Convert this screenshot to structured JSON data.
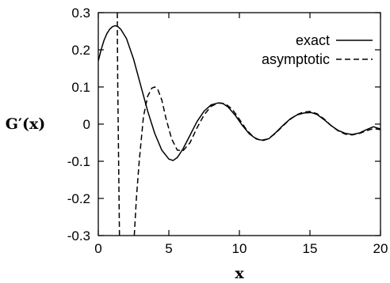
{
  "chart_data": {
    "type": "line",
    "title": "",
    "xlabel": "x",
    "ylabel": "G′(x)",
    "xlim": [
      0,
      20
    ],
    "ylim": [
      -0.3,
      0.3
    ],
    "xticks": [
      0,
      5,
      10,
      15,
      20
    ],
    "yticks": [
      0.3,
      0.2,
      0.1,
      0,
      -0.1,
      -0.2,
      -0.3
    ],
    "ytick_labels": [
      "0.3",
      "0.2",
      "0.1",
      "0",
      "-0.1",
      "-0.2",
      "-0.3"
    ],
    "grid": false,
    "legend_position": "top-right",
    "series": [
      {
        "name": "exact",
        "style": "solid",
        "color": "#000000",
        "x": [
          0,
          0.2,
          0.4,
          0.6,
          0.8,
          1.0,
          1.2,
          1.4,
          1.6,
          2.0,
          2.5,
          3.0,
          3.5,
          4.0,
          4.5,
          5.0,
          5.3,
          5.6,
          6.0,
          6.5,
          7.0,
          7.5,
          8.0,
          8.5,
          8.8,
          9.2,
          9.7,
          10.2,
          10.7,
          11.2,
          11.7,
          12.1,
          12.6,
          13.1,
          13.6,
          14.1,
          14.6,
          15.1,
          15.5,
          16.0,
          16.5,
          17.0,
          17.5,
          18.0,
          18.5,
          19.0,
          19.5,
          20.0
        ],
        "y": [
          0.17,
          0.2,
          0.225,
          0.243,
          0.255,
          0.262,
          0.265,
          0.262,
          0.255,
          0.23,
          0.175,
          0.105,
          0.035,
          -0.025,
          -0.07,
          -0.094,
          -0.098,
          -0.09,
          -0.067,
          -0.03,
          0.007,
          0.035,
          0.052,
          0.057,
          0.056,
          0.046,
          0.024,
          -0.003,
          -0.026,
          -0.04,
          -0.044,
          -0.039,
          -0.022,
          -0.003,
          0.014,
          0.025,
          0.03,
          0.031,
          0.026,
          0.012,
          -0.004,
          -0.017,
          -0.025,
          -0.028,
          -0.024,
          -0.015,
          -0.007,
          -0.013
        ]
      },
      {
        "name": "asymptotic",
        "style": "dashed",
        "color": "#000000",
        "x": [
          1.35,
          1.35,
          1.36,
          1.38,
          1.41,
          1.44,
          1.47,
          1.5,
          1.54,
          1.58,
          2.55,
          2.7,
          2.9,
          3.2,
          3.5,
          3.8,
          4.0,
          4.2,
          4.5,
          4.8,
          5.2,
          5.6,
          6.0,
          6.5,
          7.0,
          7.5,
          8.0,
          8.5,
          9.0,
          9.5,
          10.0,
          10.5,
          11.0,
          11.5,
          12.0,
          12.5,
          13.0,
          13.5,
          14.0,
          14.5,
          15.0,
          15.5,
          16.0,
          16.5,
          17.0,
          17.5,
          18.0,
          18.5,
          19.0,
          19.5,
          20.0
        ],
        "y": [
          0.3,
          0.26,
          0.2,
          0.1,
          0.0,
          -0.1,
          -0.2,
          -0.3,
          null,
          null,
          -0.3,
          -0.2,
          -0.1,
          0.02,
          0.075,
          0.097,
          0.1,
          0.095,
          0.065,
          0.015,
          -0.04,
          -0.07,
          -0.072,
          -0.05,
          -0.01,
          0.025,
          0.048,
          0.057,
          0.055,
          0.04,
          0.013,
          -0.015,
          -0.035,
          -0.044,
          -0.04,
          -0.027,
          -0.008,
          0.01,
          0.024,
          0.032,
          0.034,
          0.028,
          0.014,
          -0.004,
          -0.018,
          -0.027,
          -0.029,
          -0.025,
          -0.018,
          -0.012,
          -0.015
        ]
      }
    ]
  }
}
